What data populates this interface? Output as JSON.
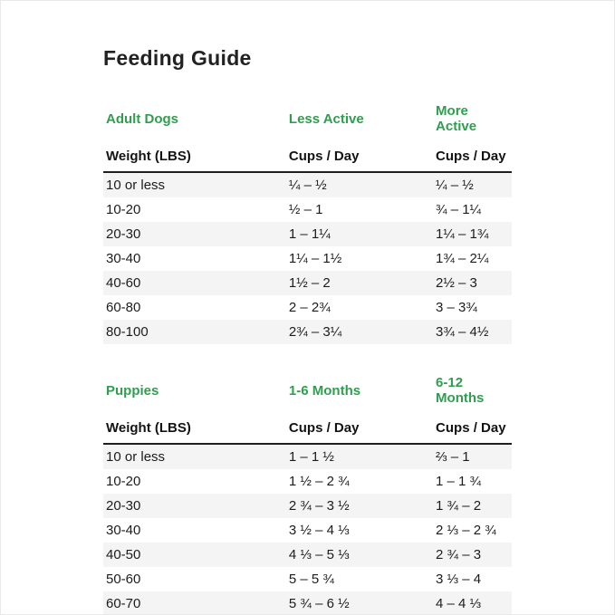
{
  "page": {
    "title": "Feeding Guide"
  },
  "colors": {
    "accent_green": "#2f9e4e",
    "text_dark": "#1c1c1c",
    "row_stripe": "#f4f4f4",
    "rule_dark": "#1f1f1f",
    "page_border": "#e9e9e9"
  },
  "chart_data": [
    {
      "type": "table",
      "title": "Adult Dogs",
      "headers": [
        "Adult Dogs",
        "Less Active",
        "More Active"
      ],
      "subheaders": [
        "Weight (LBS)",
        "Cups / Day",
        "Cups / Day"
      ],
      "rows": [
        [
          "10 or less",
          "¼ – ½",
          "¼ – ½"
        ],
        [
          "10-20",
          "½ – 1",
          "¾ – 1¼"
        ],
        [
          "20-30",
          "1 – 1¼",
          "1¼ – 1¾"
        ],
        [
          "30-40",
          "1¼ – 1½",
          "1¾ – 2¼"
        ],
        [
          "40-60",
          "1½ – 2",
          "2½ – 3"
        ],
        [
          "60-80",
          "2 – 2¾",
          "3 – 3¾"
        ],
        [
          "80-100",
          "2¾ – 3¼",
          "3¾ – 4½"
        ]
      ]
    },
    {
      "type": "table",
      "title": "Puppies",
      "headers": [
        "Puppies",
        "1-6 Months",
        "6-12 Months"
      ],
      "subheaders": [
        "Weight (LBS)",
        "Cups / Day",
        "Cups / Day"
      ],
      "rows": [
        [
          "10 or less",
          "1 – 1 ½",
          "⅔ – 1"
        ],
        [
          "10-20",
          "1 ½ – 2 ¾",
          "1 – 1 ¾"
        ],
        [
          "20-30",
          "2 ¾ – 3 ½",
          "1 ¾ – 2"
        ],
        [
          "30-40",
          "3 ½ – 4 ⅓",
          "2 ⅓ – 2 ¾"
        ],
        [
          "40-50",
          "4 ⅓ – 5 ⅓",
          "2 ¾ – 3"
        ],
        [
          "50-60",
          "5 – 5 ¾",
          "3 ⅓ – 4"
        ],
        [
          "60-70",
          "5 ¾ – 6 ½",
          "4 – 4 ⅓"
        ]
      ]
    }
  ]
}
